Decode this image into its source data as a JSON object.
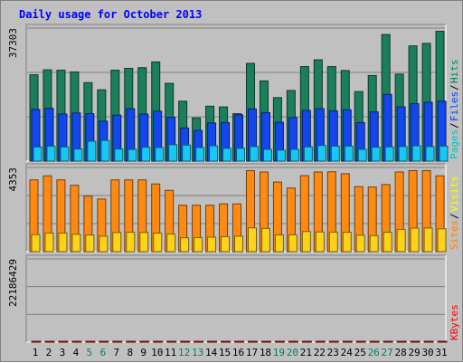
{
  "title": "Daily usage for October 2013",
  "chart_data": [
    {
      "type": "bar",
      "panel": "pages-files-hits",
      "ymax_label": "37303",
      "ymax": 37303,
      "categories": [
        "1",
        "2",
        "3",
        "4",
        "5",
        "6",
        "7",
        "8",
        "9",
        "10",
        "11",
        "12",
        "13",
        "14",
        "15",
        "16",
        "17",
        "18",
        "19",
        "20",
        "21",
        "22",
        "23",
        "24",
        "25",
        "26",
        "27",
        "28",
        "29",
        "30",
        "31"
      ],
      "weekend_days": [
        "5",
        "6",
        "12",
        "13",
        "19",
        "20",
        "26",
        "27"
      ],
      "legend": [
        {
          "label": "Pages",
          "color": "#00c0c0"
        },
        {
          "label": "Files",
          "color": "#0040ff"
        },
        {
          "label": "Hits",
          "color": "#008060"
        }
      ],
      "series": [
        {
          "name": "Hits",
          "color": "#1a7f5a",
          "values": [
            24200,
            25600,
            25500,
            25000,
            22000,
            20000,
            25500,
            26000,
            26200,
            27800,
            21800,
            16800,
            12100,
            15400,
            15200,
            13300,
            27400,
            22500,
            17800,
            19800,
            26500,
            28400,
            26500,
            25400,
            19500,
            24000,
            35500,
            24400,
            32300,
            33000,
            36400
          ]
        },
        {
          "name": "Files",
          "color": "#1446ee",
          "values": [
            14500,
            14800,
            13200,
            13500,
            13300,
            11200,
            12900,
            14700,
            13200,
            14000,
            12300,
            9300,
            8600,
            10700,
            10800,
            13000,
            14600,
            13600,
            10900,
            12200,
            14200,
            14700,
            14100,
            14400,
            10800,
            13800,
            18700,
            15200,
            16100,
            16500,
            16800
          ]
        },
        {
          "name": "Pages",
          "color": "#18c8f4",
          "values": [
            4000,
            4200,
            4000,
            3400,
            5600,
            5800,
            3400,
            3300,
            3900,
            3800,
            4600,
            4500,
            3800,
            4300,
            3600,
            3600,
            4100,
            3300,
            3100,
            3300,
            4000,
            4400,
            4200,
            4200,
            3300,
            3900,
            4000,
            4100,
            4300,
            4100,
            4200
          ]
        }
      ]
    },
    {
      "type": "bar",
      "panel": "sites-visits",
      "ymax_label": "4353",
      "ymax": 4353,
      "legend": [
        {
          "label": "Sites",
          "color": "#ff8000"
        },
        {
          "label": "Visits",
          "color": "#ffff00"
        }
      ],
      "series": [
        {
          "name": "Visits",
          "color": "#ff8a12",
          "values": [
            3710,
            3920,
            3710,
            3430,
            2870,
            2720,
            3710,
            3710,
            3710,
            3500,
            3170,
            2400,
            2400,
            2400,
            2470,
            2470,
            4190,
            4120,
            3600,
            3290,
            3930,
            4120,
            4130,
            4030,
            3360,
            3340,
            3470,
            4120,
            4190,
            4190,
            3920
          ]
        },
        {
          "name": "Sites",
          "color": "#ffd21a",
          "values": [
            880,
            960,
            960,
            900,
            860,
            800,
            990,
            1000,
            990,
            960,
            910,
            720,
            730,
            750,
            780,
            800,
            1230,
            1200,
            870,
            870,
            1040,
            1020,
            1010,
            1000,
            850,
            830,
            1000,
            1150,
            1220,
            1220,
            1180
          ]
        }
      ]
    },
    {
      "type": "bar",
      "panel": "kbytes",
      "ymax_label": "22186429",
      "ymax": 22186429,
      "legend": [
        {
          "label": "KBytes",
          "color": "#ff0000"
        }
      ],
      "series": [
        {
          "name": "KBytes",
          "color": "#ff1414",
          "values": [
            18940,
            18420,
            18420,
            18420,
            17400,
            17740,
            20510,
            21770,
            20750,
            20250,
            17570,
            17570,
            17570,
            16570,
            15900,
            18940,
            11410,
            9530,
            7820,
            8370,
            8540,
            8540,
            11060,
            8200,
            8200,
            7310,
            8200,
            10060,
            9760,
            9530,
            12070
          ]
        }
      ]
    }
  ]
}
